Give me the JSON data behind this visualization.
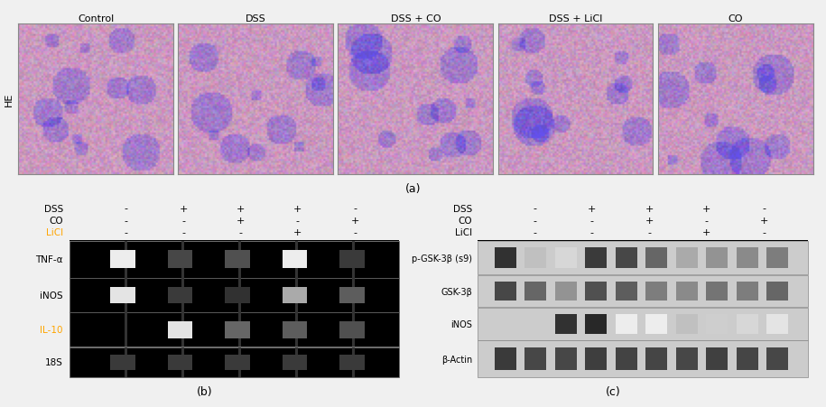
{
  "bg_color": "#f0f0f0",
  "top_labels": [
    "Control",
    "DSS",
    "DSS + CO",
    "DSS + LiCl",
    "CO"
  ],
  "he_label": "HE",
  "panel_a_label": "(a)",
  "panel_b_label": "(b)",
  "panel_c_label": "(c)",
  "b_row_labels": [
    "DSS",
    "CO",
    "LiCl"
  ],
  "b_col_signs": [
    [
      "-",
      "+",
      "+",
      "+",
      "-"
    ],
    [
      "-",
      "-",
      "+",
      "-",
      "+"
    ],
    [
      "-",
      "-",
      "-",
      "+",
      "-"
    ]
  ],
  "c_row_labels": [
    "DSS",
    "CO",
    "LiCl"
  ],
  "c_col_signs": [
    [
      "-",
      "+",
      "+",
      "+",
      "-"
    ],
    [
      "-",
      "-",
      "+",
      "-",
      "+"
    ],
    [
      "-",
      "-",
      "-",
      "+",
      "-"
    ]
  ],
  "b_gene_labels": [
    "TNF-α",
    "iNOS",
    "IL-10",
    "18S"
  ],
  "c_protein_labels": [
    "p-GSK-3β (s9)",
    "GSK-3β",
    "iNOS",
    "β-Actin"
  ],
  "licl_color_b": "#ffa500",
  "b_band_patterns": {
    "TNF-α": [
      0.08,
      0.82,
      0.78,
      0.08,
      0.88
    ],
    "iNOS": [
      0.12,
      0.88,
      0.92,
      0.38,
      0.72
    ],
    "IL-10": [
      0.04,
      0.12,
      0.68,
      0.72,
      0.78
    ],
    "18S": [
      0.88,
      0.88,
      0.88,
      0.88,
      0.88
    ]
  },
  "c_band_patterns": {
    "p-GSK-3β (s9)": [
      0.92,
      0.28,
      0.18,
      0.88,
      0.82,
      0.68,
      0.38,
      0.48,
      0.52,
      0.58
    ],
    "GSK-3β": [
      0.82,
      0.68,
      0.48,
      0.78,
      0.72,
      0.58,
      0.52,
      0.62,
      0.58,
      0.68
    ],
    "iNOS": [
      0.04,
      0.04,
      0.92,
      0.96,
      0.08,
      0.08,
      0.28,
      0.22,
      0.18,
      0.12
    ],
    "β-Actin": [
      0.88,
      0.82,
      0.82,
      0.86,
      0.84,
      0.83,
      0.82,
      0.85,
      0.83,
      0.82
    ]
  }
}
